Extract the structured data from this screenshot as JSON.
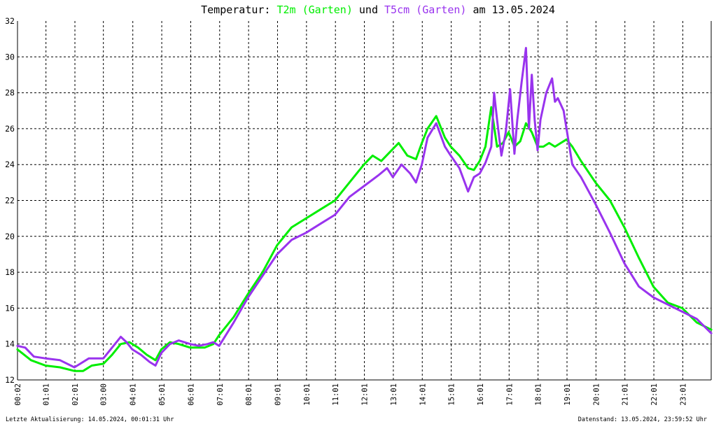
{
  "chart_data": {
    "type": "line",
    "title_prefix": "Temperatur:",
    "title_connector": "und",
    "title_suffix": "am 13.05.2024",
    "xlabel": "",
    "ylabel": "",
    "ylim": [
      12,
      32
    ],
    "y_ticks": [
      12,
      14,
      16,
      18,
      20,
      22,
      24,
      26,
      28,
      30,
      32
    ],
    "x_range_hours": [
      0.0333,
      23.9978
    ],
    "x_tick_hours": [
      0.0333,
      1.0167,
      2.0167,
      3.0,
      4.0167,
      5.0167,
      6.0167,
      7.0167,
      8.0167,
      9.0167,
      10.0167,
      11.0167,
      12.0167,
      13.0167,
      14.0167,
      15.0167,
      16.0167,
      17.0167,
      18.0167,
      19.0167,
      20.0167,
      21.0167,
      22.0167,
      23.0167
    ],
    "x_tick_labels": [
      "00:02",
      "01:01",
      "02:01",
      "03:00",
      "04:01",
      "05:01",
      "06:01",
      "07:01",
      "08:01",
      "09:01",
      "10:01",
      "11:01",
      "12:01",
      "13:01",
      "14:01",
      "15:01",
      "16:01",
      "17:01",
      "18:01",
      "19:01",
      "20:01",
      "21:01",
      "22:01",
      "23:01"
    ],
    "grid": true,
    "series": [
      {
        "name": "T2m (Garten)",
        "color": "#00ee00",
        "x": [
          0.03,
          0.5,
          1.0,
          1.5,
          2.0,
          2.3,
          2.6,
          3.0,
          3.3,
          3.6,
          3.9,
          4.2,
          4.5,
          4.8,
          5.0,
          5.3,
          5.6,
          6.0,
          6.5,
          6.8,
          7.0,
          7.5,
          8.0,
          8.5,
          9.0,
          9.5,
          10.0,
          10.5,
          11.0,
          11.5,
          12.0,
          12.3,
          12.6,
          12.9,
          13.2,
          13.5,
          13.8,
          14.0,
          14.2,
          14.5,
          14.8,
          15.0,
          15.3,
          15.6,
          15.8,
          16.0,
          16.2,
          16.4,
          16.6,
          16.8,
          17.0,
          17.2,
          17.4,
          17.6,
          17.8,
          18.0,
          18.2,
          18.4,
          18.6,
          18.8,
          19.0,
          19.2,
          19.5,
          20.0,
          20.5,
          21.0,
          21.5,
          22.0,
          22.5,
          23.0,
          23.5,
          24.0
        ],
        "y": [
          13.7,
          13.1,
          12.8,
          12.7,
          12.5,
          12.5,
          12.8,
          12.9,
          13.4,
          14.0,
          14.1,
          13.8,
          13.4,
          13.1,
          13.7,
          14.1,
          14.0,
          13.8,
          13.8,
          14.0,
          14.5,
          15.5,
          16.8,
          18.0,
          19.5,
          20.5,
          21.0,
          21.5,
          22.0,
          23.0,
          24.0,
          24.5,
          24.2,
          24.7,
          25.2,
          24.5,
          24.3,
          25.2,
          26.0,
          26.7,
          25.5,
          25.0,
          24.5,
          23.8,
          23.7,
          24.2,
          25.0,
          27.2,
          25.0,
          25.2,
          25.8,
          25.0,
          25.3,
          26.3,
          25.8,
          25.0,
          25.0,
          25.2,
          25.0,
          25.2,
          25.4,
          25.0,
          24.2,
          23.0,
          22.0,
          20.5,
          18.8,
          17.2,
          16.3,
          16.0,
          15.2,
          14.8
        ]
      },
      {
        "name": "T5cm (Garten)",
        "color": "#9933ee",
        "x": [
          0.03,
          0.3,
          0.6,
          1.0,
          1.5,
          2.0,
          2.2,
          2.5,
          3.0,
          3.3,
          3.6,
          3.8,
          4.0,
          4.3,
          4.6,
          4.8,
          5.0,
          5.3,
          5.6,
          6.0,
          6.3,
          6.6,
          6.8,
          7.0,
          7.5,
          8.0,
          8.5,
          9.0,
          9.5,
          10.0,
          10.5,
          11.0,
          11.5,
          12.0,
          12.5,
          12.8,
          13.0,
          13.3,
          13.6,
          13.8,
          14.0,
          14.2,
          14.5,
          14.8,
          15.0,
          15.3,
          15.6,
          15.8,
          16.0,
          16.2,
          16.4,
          16.5,
          16.6,
          16.75,
          16.9,
          17.05,
          17.2,
          17.3,
          17.45,
          17.6,
          17.7,
          17.8,
          17.9,
          18.0,
          18.1,
          18.3,
          18.5,
          18.6,
          18.7,
          18.9,
          19.0,
          19.2,
          19.5,
          20.0,
          20.5,
          21.0,
          21.5,
          22.0,
          22.5,
          23.0,
          23.5,
          24.0
        ],
        "y": [
          13.9,
          13.8,
          13.3,
          13.2,
          13.1,
          12.7,
          12.9,
          13.2,
          13.2,
          13.8,
          14.4,
          14.1,
          13.7,
          13.4,
          13.0,
          12.8,
          13.5,
          14.0,
          14.2,
          14.0,
          13.9,
          14.0,
          14.1,
          13.9,
          15.2,
          16.6,
          17.8,
          19.0,
          19.8,
          20.2,
          20.7,
          21.2,
          22.2,
          22.8,
          23.4,
          23.8,
          23.3,
          24.0,
          23.5,
          23.0,
          24.0,
          25.5,
          26.3,
          25.0,
          24.5,
          23.8,
          22.5,
          23.3,
          23.5,
          24.1,
          25.0,
          28.0,
          26.5,
          24.5,
          25.8,
          28.2,
          24.6,
          26.5,
          28.6,
          30.5,
          26.0,
          29.0,
          26.5,
          24.8,
          26.5,
          28.0,
          28.8,
          27.5,
          27.7,
          27.0,
          26.0,
          24.0,
          23.3,
          21.8,
          20.2,
          18.5,
          17.2,
          16.6,
          16.2,
          15.8,
          15.4,
          14.6
        ]
      }
    ]
  },
  "footer": {
    "left": "Letzte Aktualisierung: 14.05.2024, 00:01:31 Uhr",
    "right": "Datenstand: 13.05.2024, 23:59:52 Uhr"
  }
}
